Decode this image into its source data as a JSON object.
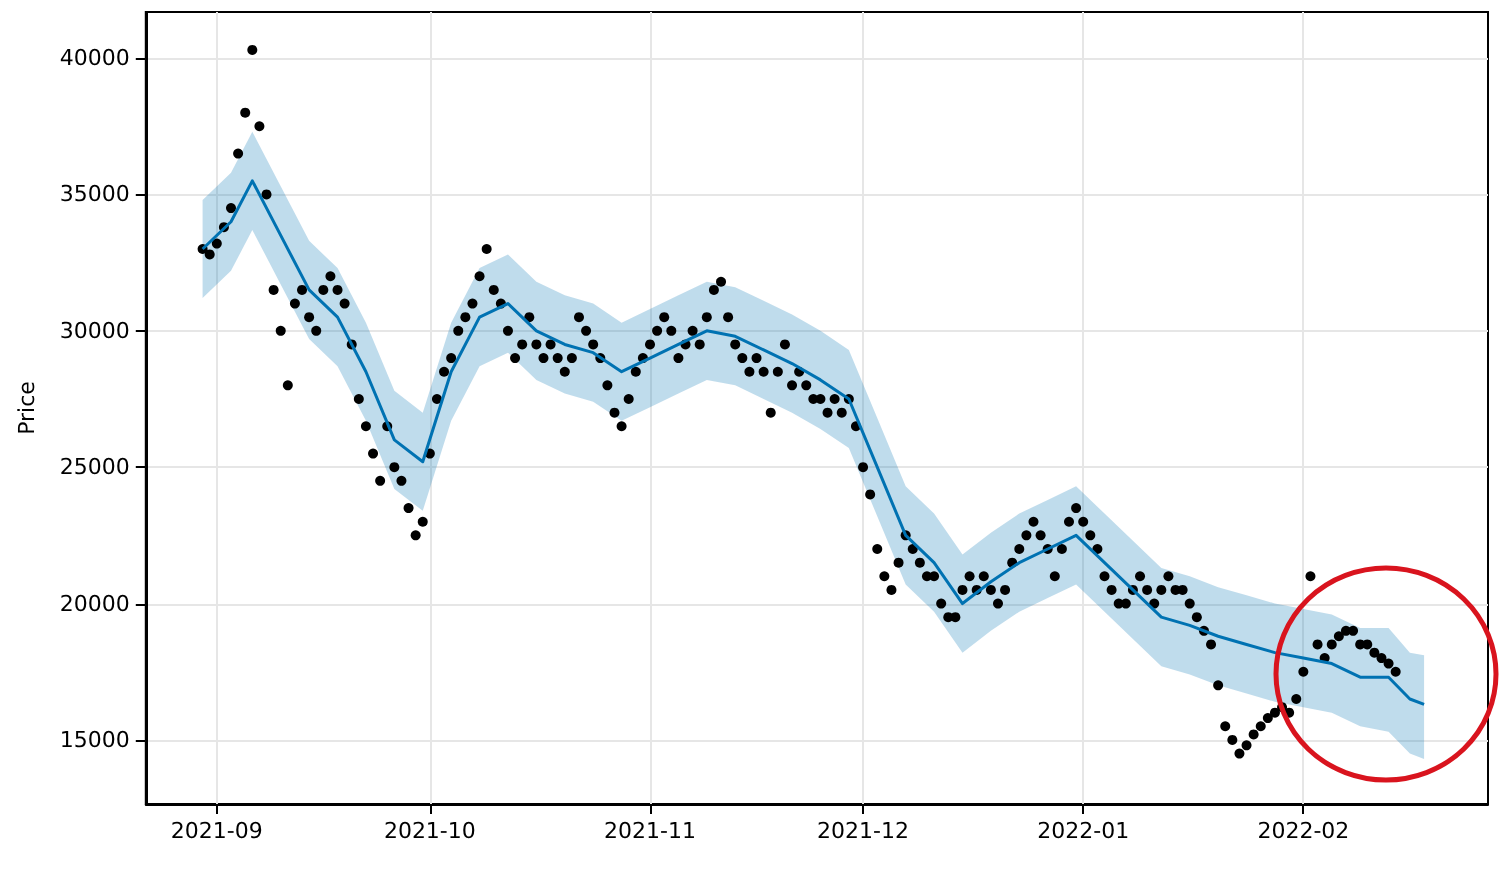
{
  "chart_data": {
    "type": "scatter",
    "ylabel": "Price",
    "grid": true,
    "xlim": [
      "2021-08-22",
      "2022-02-27"
    ],
    "ylim": [
      12650,
      41690
    ],
    "xticks": [
      {
        "value": "2021-09-01",
        "label": "2021-09"
      },
      {
        "value": "2021-10-01",
        "label": "2021-10"
      },
      {
        "value": "2021-11-01",
        "label": "2021-11"
      },
      {
        "value": "2021-12-01",
        "label": "2021-12"
      },
      {
        "value": "2022-01-01",
        "label": "2022-01"
      },
      {
        "value": "2022-02-01",
        "label": "2022-02"
      }
    ],
    "yticks": [
      15000,
      20000,
      25000,
      30000,
      35000,
      40000
    ],
    "series": [
      {
        "marker": "circle",
        "color": "#000000",
        "x": [
          "2021-08-30",
          "2021-08-31",
          "2021-09-01",
          "2021-09-02",
          "2021-09-03",
          "2021-09-04",
          "2021-09-05",
          "2021-09-06",
          "2021-09-07",
          "2021-09-08",
          "2021-09-09",
          "2021-09-10",
          "2021-09-11",
          "2021-09-12",
          "2021-09-13",
          "2021-09-14",
          "2021-09-15",
          "2021-09-16",
          "2021-09-17",
          "2021-09-18",
          "2021-09-19",
          "2021-09-20",
          "2021-09-21",
          "2021-09-22",
          "2021-09-23",
          "2021-09-24",
          "2021-09-25",
          "2021-09-26",
          "2021-09-27",
          "2021-09-28",
          "2021-09-29",
          "2021-09-30",
          "2021-10-01",
          "2021-10-02",
          "2021-10-03",
          "2021-10-04",
          "2021-10-05",
          "2021-10-06",
          "2021-10-07",
          "2021-10-08",
          "2021-10-09",
          "2021-10-10",
          "2021-10-11",
          "2021-10-12",
          "2021-10-13",
          "2021-10-14",
          "2021-10-15",
          "2021-10-16",
          "2021-10-17",
          "2021-10-18",
          "2021-10-19",
          "2021-10-20",
          "2021-10-21",
          "2021-10-22",
          "2021-10-23",
          "2021-10-24",
          "2021-10-25",
          "2021-10-26",
          "2021-10-27",
          "2021-10-28",
          "2021-10-29",
          "2021-10-30",
          "2021-10-31",
          "2021-11-01",
          "2021-11-02",
          "2021-11-03",
          "2021-11-04",
          "2021-11-05",
          "2021-11-06",
          "2021-11-07",
          "2021-11-08",
          "2021-11-09",
          "2021-11-10",
          "2021-11-11",
          "2021-11-12",
          "2021-11-13",
          "2021-11-14",
          "2021-11-15",
          "2021-11-16",
          "2021-11-17",
          "2021-11-18",
          "2021-11-19",
          "2021-11-20",
          "2021-11-21",
          "2021-11-22",
          "2021-11-23",
          "2021-11-24",
          "2021-11-25",
          "2021-11-26",
          "2021-11-27",
          "2021-11-28",
          "2021-11-29",
          "2021-11-30",
          "2021-12-01",
          "2021-12-02",
          "2021-12-03",
          "2021-12-04",
          "2021-12-05",
          "2021-12-06",
          "2021-12-07",
          "2021-12-08",
          "2021-12-09",
          "2021-12-10",
          "2021-12-11",
          "2021-12-12",
          "2021-12-13",
          "2021-12-14",
          "2021-12-15",
          "2021-12-16",
          "2021-12-17",
          "2021-12-18",
          "2021-12-19",
          "2021-12-20",
          "2021-12-21",
          "2021-12-22",
          "2021-12-23",
          "2021-12-24",
          "2021-12-25",
          "2021-12-26",
          "2021-12-27",
          "2021-12-28",
          "2021-12-29",
          "2021-12-30",
          "2021-12-31",
          "2022-01-01",
          "2022-01-02",
          "2022-01-03",
          "2022-01-04",
          "2022-01-05",
          "2022-01-06",
          "2022-01-07",
          "2022-01-08",
          "2022-01-09",
          "2022-01-10",
          "2022-01-11",
          "2022-01-12",
          "2022-01-13",
          "2022-01-14",
          "2022-01-15",
          "2022-01-16",
          "2022-01-17",
          "2022-01-18",
          "2022-01-19",
          "2022-01-20",
          "2022-01-21",
          "2022-01-22",
          "2022-01-23",
          "2022-01-24",
          "2022-01-25",
          "2022-01-26",
          "2022-01-27",
          "2022-01-28",
          "2022-01-29",
          "2022-01-30",
          "2022-01-31",
          "2022-02-01",
          "2022-02-02",
          "2022-02-03",
          "2022-02-04",
          "2022-02-05",
          "2022-02-06",
          "2022-02-07",
          "2022-02-08",
          "2022-02-09",
          "2022-02-10",
          "2022-02-11",
          "2022-02-12",
          "2022-02-13",
          "2022-02-14"
        ],
        "values": [
          33000,
          32800,
          33200,
          33800,
          34500,
          36500,
          38000,
          40300,
          37500,
          35000,
          31500,
          30000,
          28000,
          31000,
          31500,
          30500,
          30000,
          31500,
          32000,
          31500,
          31000,
          29500,
          27500,
          26500,
          25500,
          24500,
          26500,
          25000,
          24500,
          23500,
          22500,
          23000,
          25500,
          27500,
          28500,
          29000,
          30000,
          30500,
          31000,
          32000,
          33000,
          31500,
          31000,
          30000,
          29000,
          29500,
          30500,
          29500,
          29000,
          29500,
          29000,
          28500,
          29000,
          30500,
          30000,
          29500,
          29000,
          28000,
          27000,
          26500,
          27500,
          28500,
          29000,
          29500,
          30000,
          30500,
          30000,
          29000,
          29500,
          30000,
          29500,
          30500,
          31500,
          31800,
          30500,
          29500,
          29000,
          28500,
          29000,
          28500,
          27000,
          28500,
          29500,
          28000,
          28500,
          28000,
          27500,
          27500,
          27000,
          27500,
          27000,
          27500,
          26500,
          25000,
          24000,
          22000,
          21000,
          20500,
          21500,
          22500,
          22000,
          21500,
          21000,
          21000,
          20000,
          19500,
          19500,
          20500,
          21000,
          20500,
          21000,
          20500,
          20000,
          20500,
          21500,
          22000,
          22500,
          23000,
          22500,
          22000,
          21000,
          22000,
          23000,
          23500,
          23000,
          22500,
          22000,
          21000,
          20500,
          20000,
          20000,
          20500,
          21000,
          20500,
          20000,
          20500,
          21000,
          20500,
          20500,
          20000,
          19500,
          19000,
          18500,
          17000,
          15500,
          15000,
          14500,
          14800,
          15200,
          15500,
          15800,
          16000,
          16200,
          16000,
          16500,
          17500,
          21000,
          18500,
          18000,
          18500,
          18800,
          19000,
          19000,
          18500,
          18500,
          18200,
          18000,
          17800,
          17500
        ]
      },
      {
        "type": "line",
        "color": "#0072b2",
        "x": [
          "2021-08-30",
          "2021-09-03",
          "2021-09-06",
          "2021-09-10",
          "2021-09-14",
          "2021-09-18",
          "2021-09-22",
          "2021-09-26",
          "2021-09-30",
          "2021-10-04",
          "2021-10-08",
          "2021-10-12",
          "2021-10-16",
          "2021-10-20",
          "2021-10-24",
          "2021-10-28",
          "2021-11-01",
          "2021-11-05",
          "2021-11-09",
          "2021-11-13",
          "2021-11-17",
          "2021-11-21",
          "2021-11-25",
          "2021-11-29",
          "2021-12-03",
          "2021-12-07",
          "2021-12-11",
          "2021-12-15",
          "2021-12-19",
          "2021-12-23",
          "2021-12-27",
          "2021-12-31",
          "2022-01-04",
          "2022-01-08",
          "2022-01-12",
          "2022-01-16",
          "2022-01-20",
          "2022-01-24",
          "2022-01-28",
          "2022-02-01",
          "2022-02-05",
          "2022-02-09",
          "2022-02-13",
          "2022-02-16",
          "2022-02-18"
        ],
        "values": [
          33000,
          34000,
          35500,
          33500,
          31500,
          30500,
          28500,
          26000,
          25200,
          28500,
          30500,
          31000,
          30000,
          29500,
          29200,
          28500,
          29000,
          29500,
          30000,
          29800,
          29300,
          28800,
          28200,
          27500,
          25000,
          22500,
          21500,
          20000,
          20800,
          21500,
          22000,
          22500,
          21500,
          20500,
          19500,
          19200,
          18800,
          18500,
          18200,
          18000,
          17800,
          17300,
          17300,
          16500,
          16300
        ],
        "upper": [
          34800,
          35800,
          37300,
          35300,
          33300,
          32300,
          30300,
          27800,
          27000,
          30300,
          32300,
          32800,
          31800,
          31300,
          31000,
          30300,
          30800,
          31300,
          31800,
          31600,
          31100,
          30600,
          30000,
          29300,
          26800,
          24300,
          23300,
          21800,
          22600,
          23300,
          23800,
          24300,
          23300,
          22300,
          21300,
          21000,
          20600,
          20300,
          20000,
          19800,
          19600,
          19100,
          19100,
          18200,
          18100
        ],
        "lower": [
          31200,
          32200,
          33700,
          31700,
          29700,
          28700,
          26700,
          24200,
          23400,
          26700,
          28700,
          29200,
          28200,
          27700,
          27400,
          26700,
          27200,
          27700,
          28200,
          28000,
          27500,
          27000,
          26400,
          25700,
          23200,
          20700,
          19700,
          18200,
          19000,
          19700,
          20200,
          20700,
          19700,
          18700,
          17700,
          17400,
          17000,
          16700,
          16400,
          16200,
          16000,
          15500,
          15300,
          14500,
          14300
        ]
      }
    ]
  }
}
